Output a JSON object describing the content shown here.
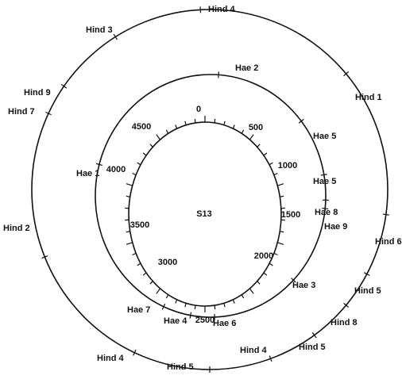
{
  "center_label": "S13",
  "scale_labels": [
    0,
    500,
    1000,
    1500,
    2000,
    2500,
    3000,
    3500,
    4000,
    4500
  ],
  "inner_sites": [
    "Hae 2",
    "Hae 5",
    "Hae 5",
    "Hae 8",
    "Hae 9",
    "Hae 3",
    "Hae 6",
    "Hae 4",
    "Hae 7",
    "Hae 1"
  ],
  "outer_sites": [
    "Hind 4",
    "Hind 1",
    "Hind 6",
    "Hind 5",
    "Hind 8",
    "Hind 5",
    "Hind 4",
    "Hind 5",
    "Hind 4",
    "Hind 2",
    "Hind 7",
    "Hind 9",
    "Hind 3"
  ]
}
